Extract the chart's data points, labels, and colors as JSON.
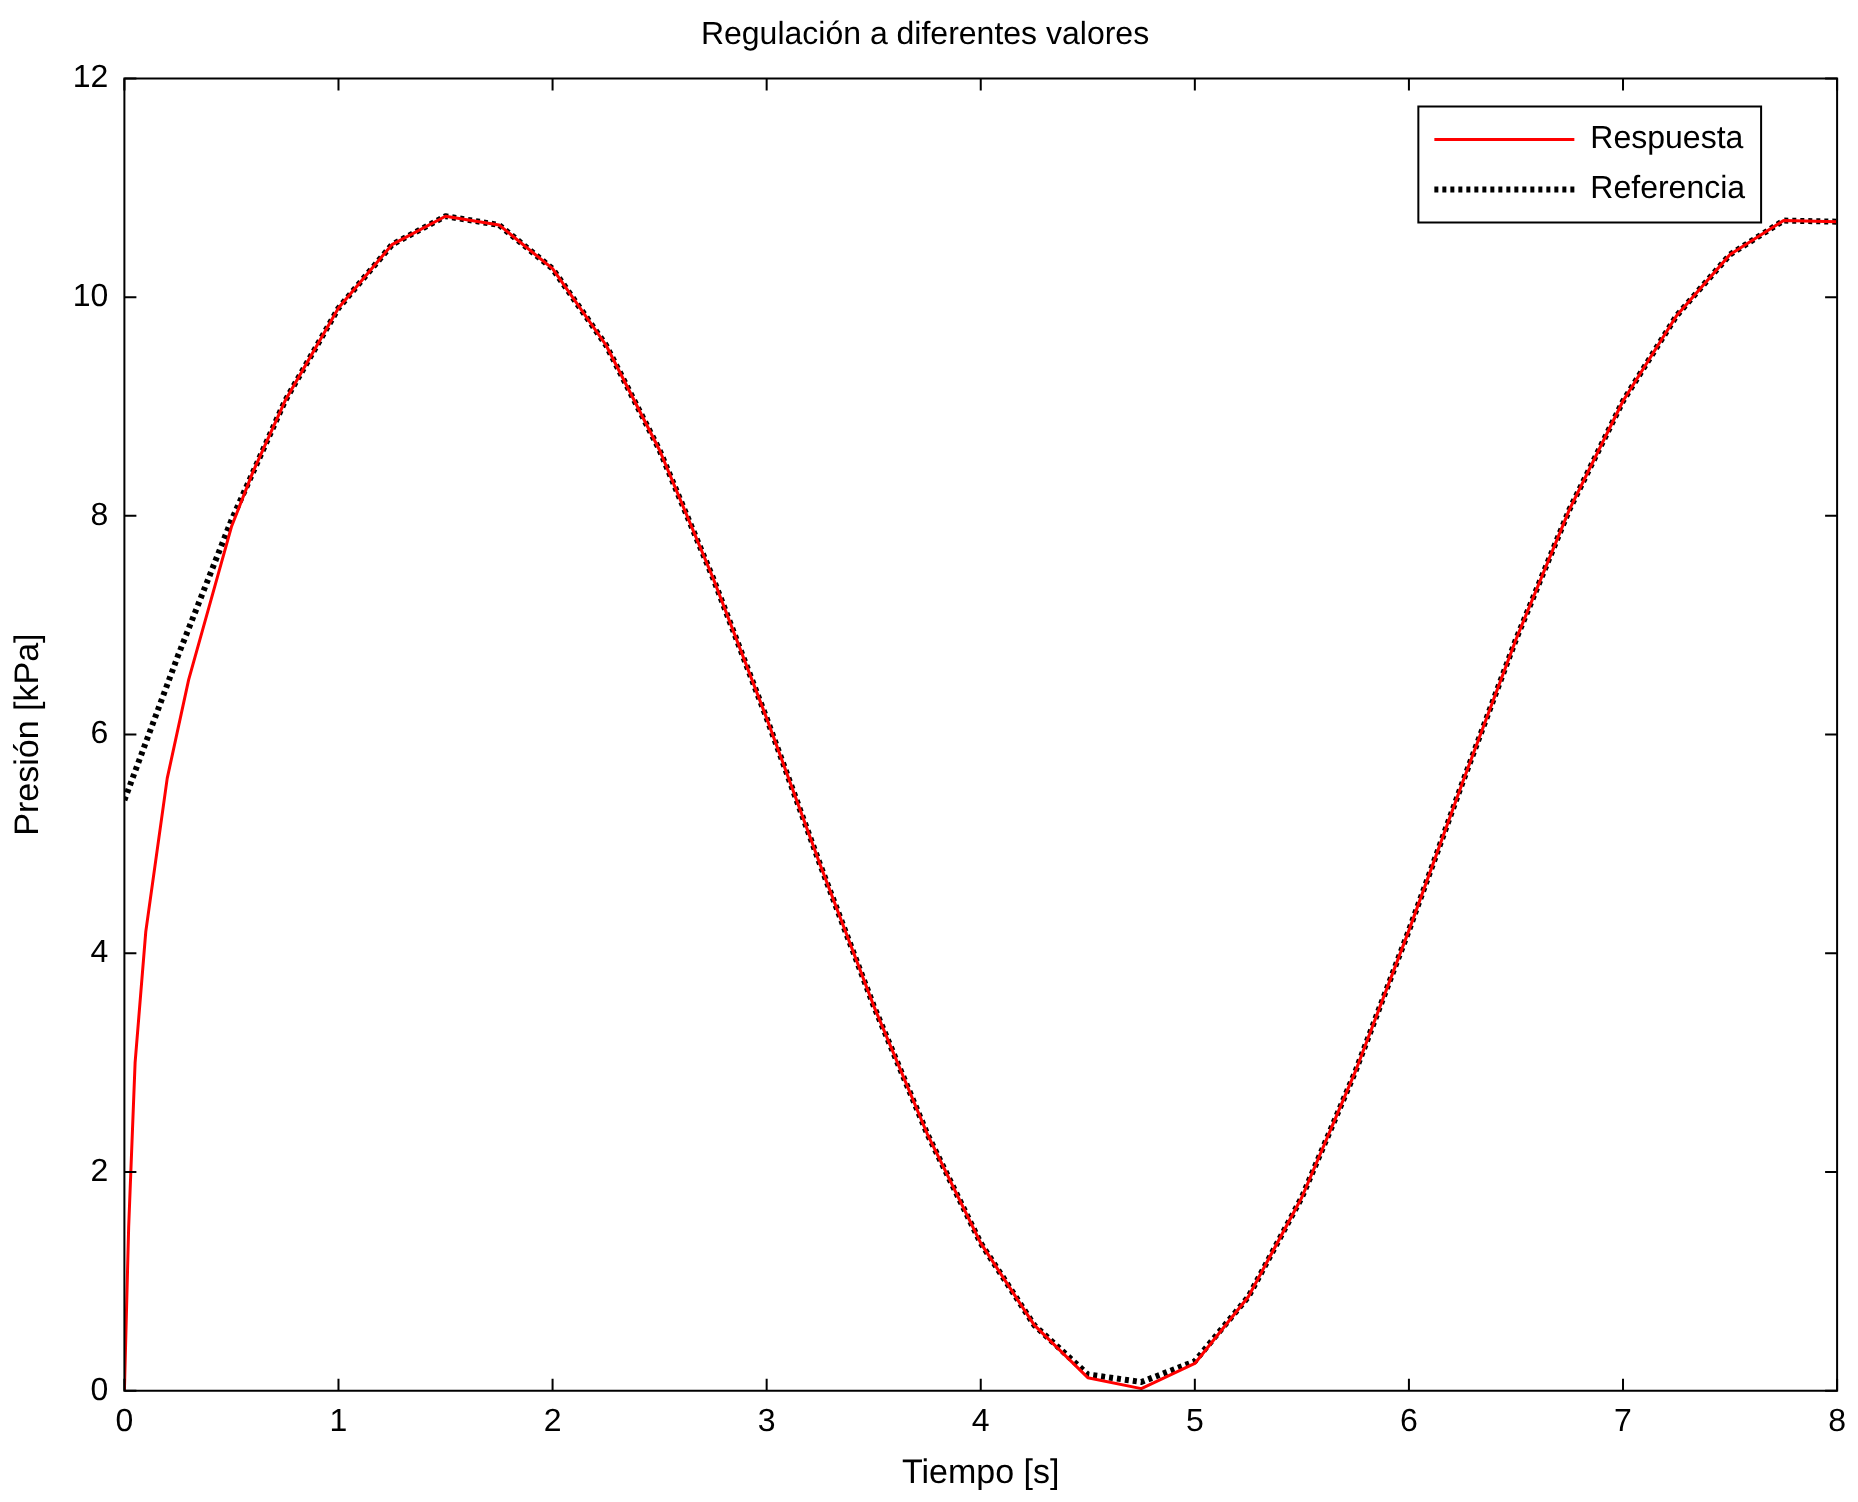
{
  "chart_data": {
    "type": "line",
    "title": "Regulación a diferentes valores",
    "xlabel": "Tiempo [s]",
    "ylabel": "Presión [kPa]",
    "xlim": [
      0,
      8
    ],
    "xticks": [
      0,
      1,
      2,
      3,
      4,
      5,
      6,
      7,
      8
    ],
    "ylim": [
      0,
      12
    ],
    "yticks": [
      0,
      2,
      4,
      6,
      8,
      10,
      12
    ],
    "grid": false,
    "legend": "top right",
    "marker": "none",
    "series": [
      {
        "name": "Respuesta",
        "color": "#ff0000",
        "line_style": "solid",
        "x": [
          0,
          0.02,
          0.05,
          0.1,
          0.2,
          0.3,
          0.4,
          0.5,
          0.6,
          0.75,
          1,
          1.25,
          1.5,
          1.75,
          2,
          2.25,
          2.5,
          2.75,
          3,
          3.25,
          3.5,
          3.75,
          4,
          4.25,
          4.5,
          4.75,
          5,
          5.25,
          5.5,
          5.75,
          6,
          6.25,
          6.5,
          6.75,
          7,
          7.25,
          7.5,
          7.75,
          8
        ],
        "values": [
          0,
          1.5,
          3,
          4.2,
          5.6,
          6.5,
          7.2,
          7.9,
          8.4,
          9.05,
          9.9,
          10.48,
          10.74,
          10.66,
          10.26,
          9.56,
          8.6,
          7.43,
          6.15,
          4.81,
          3.52,
          2.35,
          1.35,
          0.6,
          0.12,
          0.02,
          0.25,
          0.86,
          1.77,
          2.92,
          4.21,
          5.56,
          6.87,
          8.06,
          9.05,
          9.83,
          10.39,
          10.7,
          10.69
        ]
      },
      {
        "name": "Referencia",
        "color": "#000000",
        "line_style": "dotted",
        "x": [
          0,
          0.25,
          0.5,
          0.75,
          1,
          1.25,
          1.5,
          1.75,
          2,
          2.25,
          2.5,
          2.75,
          3,
          3.25,
          3.5,
          3.75,
          4,
          4.25,
          4.5,
          4.75,
          5,
          5.25,
          5.5,
          5.75,
          6,
          6.25,
          6.5,
          6.75,
          7,
          7.25,
          7.5,
          7.75,
          8
        ],
        "values": [
          5.4,
          6.72,
          7.96,
          9.05,
          9.9,
          10.48,
          10.74,
          10.66,
          10.26,
          9.56,
          8.6,
          7.43,
          6.15,
          4.81,
          3.52,
          2.35,
          1.35,
          0.6,
          0.15,
          0.08,
          0.27,
          0.86,
          1.77,
          2.92,
          4.21,
          5.56,
          6.87,
          8.06,
          9.05,
          9.83,
          10.39,
          10.7,
          10.69
        ]
      }
    ]
  }
}
